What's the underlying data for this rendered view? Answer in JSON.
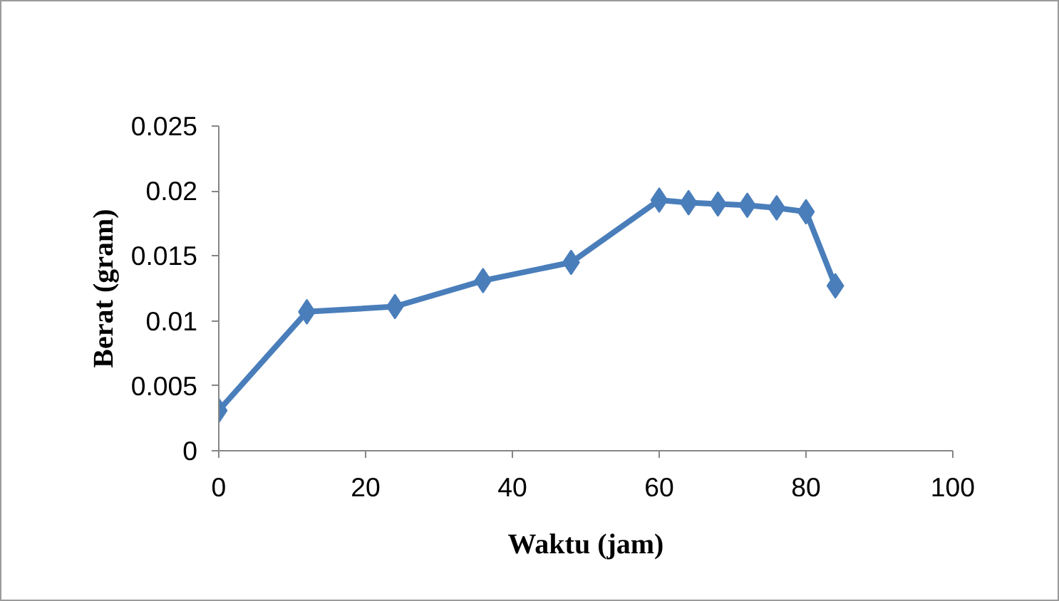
{
  "chart_data": {
    "type": "line",
    "xlabel": "Waktu (jam)",
    "ylabel": "Berat (gram)",
    "x": [
      0,
      12,
      24,
      36,
      48,
      60,
      64,
      68,
      72,
      76,
      80,
      84
    ],
    "series": [
      {
        "color": "#4a7ebb",
        "values": [
          0.0031,
          0.0107,
          0.0111,
          0.0131,
          0.0145,
          0.0193,
          0.0191,
          0.019,
          0.0189,
          0.0187,
          0.0184,
          0.0127
        ]
      }
    ],
    "xlim": [
      0,
      100
    ],
    "xticks": [
      0,
      20,
      40,
      60,
      80,
      100
    ],
    "ylim": [
      0,
      0.025
    ],
    "yticks": [
      0,
      0.005,
      0.01,
      0.015,
      0.02,
      0.025
    ],
    "grid": false,
    "marker": "diamond",
    "line_style": "solid"
  }
}
